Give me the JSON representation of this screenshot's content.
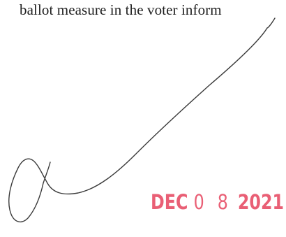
{
  "document": {
    "text_line": "ballot measure in the voter inform"
  },
  "stamp": {
    "month": "DEC",
    "day": "0 8",
    "year": "2021",
    "color": "#e8526a"
  },
  "signature": {
    "ink_color": "#3a3a3a"
  }
}
